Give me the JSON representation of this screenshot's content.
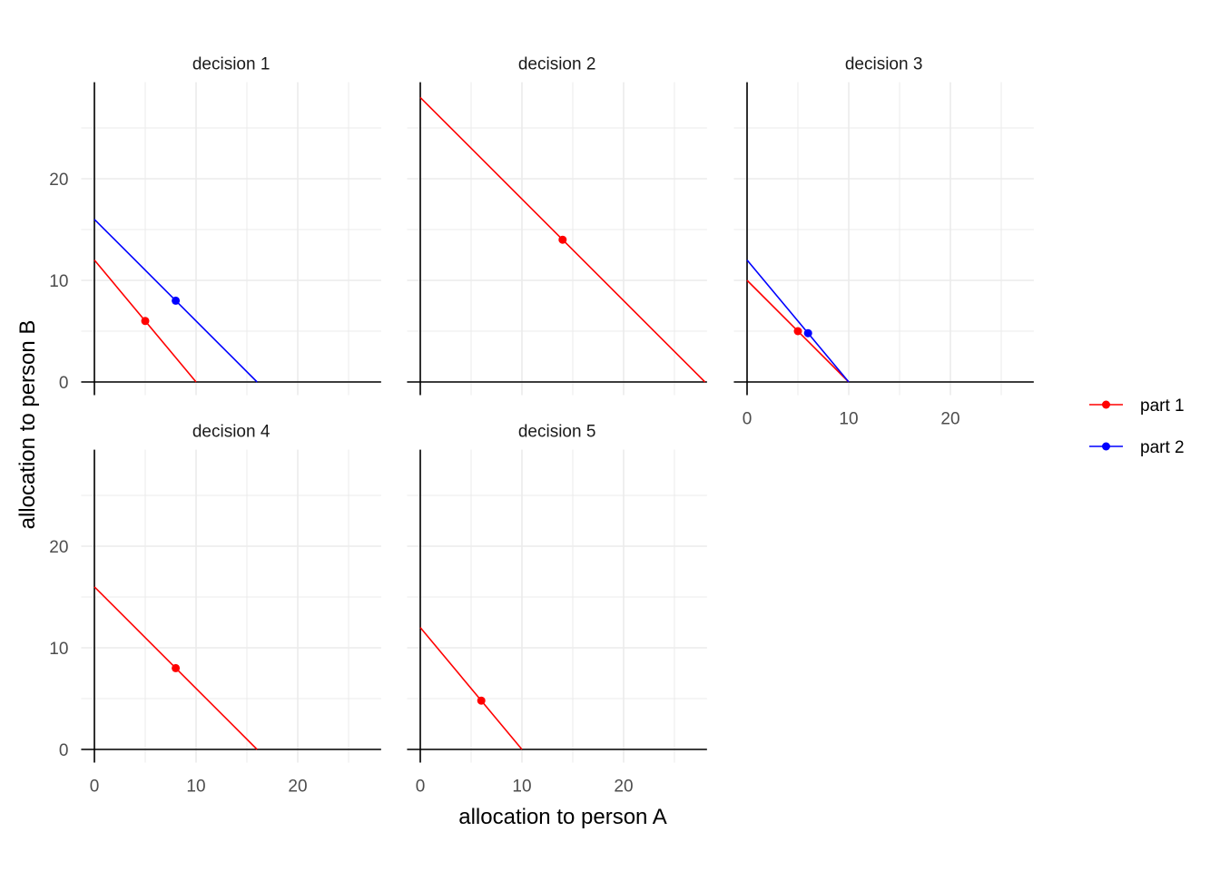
{
  "chart_data": {
    "type": "line",
    "layout": "facet_wrap",
    "xlabel": "allocation to person A",
    "ylabel": "allocation to person B",
    "xlim": [
      -1.3,
      28.2
    ],
    "ylim": [
      -1.3,
      29.5
    ],
    "x_ticks": [
      0,
      10,
      20
    ],
    "y_ticks": [
      0,
      10,
      20
    ],
    "grid": true,
    "legend_position": "right",
    "legend": [
      {
        "name": "part 1",
        "color": "#ff0000"
      },
      {
        "name": "part 2",
        "color": "#0000ff"
      }
    ],
    "panels": [
      {
        "title": "decision 1",
        "series": [
          {
            "name": "part 1",
            "line": [
              [
                0,
                12
              ],
              [
                10,
                0
              ]
            ],
            "point": [
              5,
              6
            ]
          },
          {
            "name": "part 2",
            "line": [
              [
                0,
                16
              ],
              [
                16,
                0
              ]
            ],
            "point": [
              8,
              8
            ]
          }
        ]
      },
      {
        "title": "decision 2",
        "series": [
          {
            "name": "part 1",
            "line": [
              [
                0,
                28
              ],
              [
                28,
                0
              ]
            ],
            "point": [
              14,
              14
            ]
          }
        ]
      },
      {
        "title": "decision 3",
        "series": [
          {
            "name": "part 1",
            "line": [
              [
                0,
                10
              ],
              [
                10,
                0
              ]
            ],
            "point": [
              5,
              5
            ]
          },
          {
            "name": "part 2",
            "line": [
              [
                0,
                12
              ],
              [
                10,
                0
              ]
            ],
            "point": [
              6,
              4.8
            ]
          }
        ]
      },
      {
        "title": "decision 4",
        "series": [
          {
            "name": "part 1",
            "line": [
              [
                0,
                16
              ],
              [
                16,
                0
              ]
            ],
            "point": [
              8,
              8
            ]
          }
        ]
      },
      {
        "title": "decision 5",
        "series": [
          {
            "name": "part 1",
            "line": [
              [
                0,
                12
              ],
              [
                10,
                0
              ]
            ],
            "point": [
              6,
              4.8
            ]
          }
        ]
      }
    ]
  }
}
